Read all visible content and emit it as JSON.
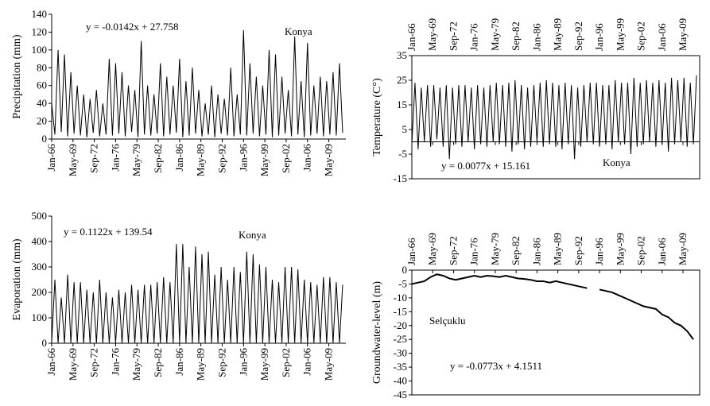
{
  "chart_data": [
    {
      "type": "line",
      "ylabel": "Precipitation (mm)",
      "ylim": [
        0,
        140
      ],
      "yticks": [
        0,
        20,
        40,
        60,
        80,
        100,
        120,
        140
      ],
      "xaxis_position": "bottom",
      "frame": false,
      "color": "#000000",
      "xlim": [
        "1966-01",
        "2012-01"
      ],
      "xticks": [
        {
          "value": "1966-01",
          "label": "Jan-66"
        },
        {
          "value": "1969-05",
          "label": "May-69"
        },
        {
          "value": "1972-09",
          "label": "Sep-72"
        },
        {
          "value": "1976-01",
          "label": "Jan-76"
        },
        {
          "value": "1979-05",
          "label": "May-79"
        },
        {
          "value": "1982-09",
          "label": "Sep-82"
        },
        {
          "value": "1986-01",
          "label": "Jan-86"
        },
        {
          "value": "1989-05",
          "label": "May-89"
        },
        {
          "value": "1992-09",
          "label": "Sep-92"
        },
        {
          "value": "1996-01",
          "label": "Jan-96"
        },
        {
          "value": "1999-05",
          "label": "May-99"
        },
        {
          "value": "2002-09",
          "label": "Sep-02"
        },
        {
          "value": "2006-01",
          "label": "Jan-06"
        },
        {
          "value": "2009-05",
          "label": "May-09"
        }
      ],
      "annotations": [
        {
          "text": "y = -0.0142x + 27.758"
        },
        {
          "text": "Konya"
        }
      ],
      "x": [
        "1966-01",
        "1966-07",
        "1967-01",
        "1967-07",
        "1968-01",
        "1968-07",
        "1969-01",
        "1969-07",
        "1970-01",
        "1970-07",
        "1971-01",
        "1971-07",
        "1972-01",
        "1972-07",
        "1973-01",
        "1973-07",
        "1974-01",
        "1974-07",
        "1975-01",
        "1975-07",
        "1976-01",
        "1976-07",
        "1977-01",
        "1977-07",
        "1978-01",
        "1978-07",
        "1979-01",
        "1979-07",
        "1980-01",
        "1980-07",
        "1981-01",
        "1981-07",
        "1982-01",
        "1982-07",
        "1983-01",
        "1983-07",
        "1984-01",
        "1984-07",
        "1985-01",
        "1985-07",
        "1986-01",
        "1986-07",
        "1987-01",
        "1987-07",
        "1988-01",
        "1988-07",
        "1989-01",
        "1989-07",
        "1990-01",
        "1990-07",
        "1991-01",
        "1991-07",
        "1992-01",
        "1992-07",
        "1993-01",
        "1993-07",
        "1994-01",
        "1994-07",
        "1995-01",
        "1995-07",
        "1996-01",
        "1996-07",
        "1997-01",
        "1997-07",
        "1998-01",
        "1998-07",
        "1999-01",
        "1999-07",
        "2000-01",
        "2000-07",
        "2001-01",
        "2001-07",
        "2002-01",
        "2002-07",
        "2003-01",
        "2003-07",
        "2004-01",
        "2004-07",
        "2005-01",
        "2005-07",
        "2006-01",
        "2006-07",
        "2007-01",
        "2007-07",
        "2008-01",
        "2008-07",
        "2009-01",
        "2009-07",
        "2010-01",
        "2010-07",
        "2011-01",
        "2011-07"
      ],
      "values": [
        40,
        5,
        100,
        8,
        95,
        3,
        75,
        6,
        60,
        4,
        50,
        2,
        45,
        7,
        55,
        3,
        40,
        5,
        90,
        4,
        85,
        6,
        75,
        3,
        60,
        8,
        55,
        2,
        110,
        5,
        60,
        4,
        50,
        6,
        85,
        3,
        70,
        5,
        60,
        7,
        90,
        2,
        65,
        4,
        80,
        6,
        55,
        3,
        40,
        5,
        60,
        2,
        50,
        6,
        45,
        4,
        80,
        3,
        50,
        5,
        122,
        4,
        85,
        6,
        70,
        3,
        60,
        5,
        100,
        2,
        95,
        4,
        70,
        6,
        55,
        3,
        115,
        5,
        65,
        2,
        108,
        4,
        60,
        6,
        70,
        3,
        65,
        5,
        75,
        4,
        85,
        7
      ]
    },
    {
      "type": "line",
      "ylabel": "Temperature (C°)",
      "ylim": [
        -15,
        35
      ],
      "yticks": [
        -15,
        -5,
        5,
        15,
        25,
        35
      ],
      "xaxis_position": "top",
      "frame": true,
      "color": "#000000",
      "xlim": [
        "1966-01",
        "2012-01"
      ],
      "xticks": [
        {
          "value": "1966-01",
          "label": "Jan-66"
        },
        {
          "value": "1969-05",
          "label": "May-69"
        },
        {
          "value": "1972-09",
          "label": "Sep-72"
        },
        {
          "value": "1976-01",
          "label": "Jan-76"
        },
        {
          "value": "1979-05",
          "label": "May-79"
        },
        {
          "value": "1982-09",
          "label": "Sep-82"
        },
        {
          "value": "1986-01",
          "label": "Jan-86"
        },
        {
          "value": "1989-05",
          "label": "May-89"
        },
        {
          "value": "1992-09",
          "label": "Sep-92"
        },
        {
          "value": "1996-01",
          "label": "Jan-96"
        },
        {
          "value": "1999-05",
          "label": "May-99"
        },
        {
          "value": "2002-09",
          "label": "Sep-02"
        },
        {
          "value": "2006-01",
          "label": "Jan-06"
        },
        {
          "value": "2009-05",
          "label": "May-09"
        }
      ],
      "annotations": [
        {
          "text": "y = 0.0077x + 15.161"
        },
        {
          "text": "Konya"
        }
      ],
      "x": [
        "1966-01",
        "1966-07",
        "1967-01",
        "1967-07",
        "1968-01",
        "1968-07",
        "1969-01",
        "1969-07",
        "1970-01",
        "1970-07",
        "1971-01",
        "1971-07",
        "1972-01",
        "1972-07",
        "1973-01",
        "1973-07",
        "1974-01",
        "1974-07",
        "1975-01",
        "1975-07",
        "1976-01",
        "1976-07",
        "1977-01",
        "1977-07",
        "1978-01",
        "1978-07",
        "1979-01",
        "1979-07",
        "1980-01",
        "1980-07",
        "1981-01",
        "1981-07",
        "1982-01",
        "1982-07",
        "1983-01",
        "1983-07",
        "1984-01",
        "1984-07",
        "1985-01",
        "1985-07",
        "1986-01",
        "1986-07",
        "1987-01",
        "1987-07",
        "1988-01",
        "1988-07",
        "1989-01",
        "1989-07",
        "1990-01",
        "1990-07",
        "1991-01",
        "1991-07",
        "1992-01",
        "1992-07",
        "1993-01",
        "1993-07",
        "1994-01",
        "1994-07",
        "1995-01",
        "1995-07",
        "1996-01",
        "1996-07",
        "1997-01",
        "1997-07",
        "1998-01",
        "1998-07",
        "1999-01",
        "1999-07",
        "2000-01",
        "2000-07",
        "2001-01",
        "2001-07",
        "2002-01",
        "2002-07",
        "2003-01",
        "2003-07",
        "2004-01",
        "2004-07",
        "2005-01",
        "2005-07",
        "2006-01",
        "2006-07",
        "2007-01",
        "2007-07",
        "2008-01",
        "2008-07",
        "2009-01",
        "2009-07",
        "2010-01",
        "2010-07",
        "2011-01",
        "2011-07"
      ],
      "values": [
        -1,
        24,
        -3,
        22,
        0,
        23,
        -2,
        23,
        1,
        22,
        -2,
        23,
        -7,
        22,
        -1,
        23,
        -2,
        23,
        0,
        22,
        -3,
        23,
        -1,
        22,
        -2,
        23,
        0,
        24,
        -1,
        23,
        -2,
        24,
        -4,
        25,
        -1,
        23,
        -3,
        22,
        -2,
        23,
        0,
        24,
        -2,
        25,
        -1,
        24,
        -2,
        23,
        -3,
        24,
        -1,
        23,
        -7,
        22,
        -2,
        23,
        0,
        24,
        -1,
        24,
        -2,
        23,
        -1,
        23,
        -3,
        25,
        0,
        24,
        -1,
        24,
        -5,
        26,
        -2,
        24,
        -1,
        25,
        0,
        24,
        -2,
        25,
        -1,
        24,
        -4,
        26,
        -1,
        25,
        0,
        26,
        -2,
        24,
        -1,
        27
      ]
    },
    {
      "type": "line",
      "ylabel": "Evaporation (mm)",
      "ylim": [
        0,
        500
      ],
      "yticks": [
        0,
        100,
        200,
        300,
        400,
        500
      ],
      "xaxis_position": "bottom",
      "frame": false,
      "color": "#000000",
      "xlim": [
        "1966-01",
        "2012-01"
      ],
      "xticks": [
        {
          "value": "1966-01",
          "label": "Jan-66"
        },
        {
          "value": "1969-05",
          "label": "May-69"
        },
        {
          "value": "1972-09",
          "label": "Sep-72"
        },
        {
          "value": "1976-01",
          "label": "Jan-76"
        },
        {
          "value": "1979-05",
          "label": "May-79"
        },
        {
          "value": "1982-09",
          "label": "Sep-82"
        },
        {
          "value": "1986-01",
          "label": "Jan-86"
        },
        {
          "value": "1989-05",
          "label": "May-89"
        },
        {
          "value": "1992-09",
          "label": "Sep-92"
        },
        {
          "value": "1996-01",
          "label": "Jan-96"
        },
        {
          "value": "1999-05",
          "label": "May-99"
        },
        {
          "value": "2002-09",
          "label": "Sep-02"
        },
        {
          "value": "2006-01",
          "label": "Jan-06"
        },
        {
          "value": "2009-05",
          "label": "May-09"
        }
      ],
      "annotations": [
        {
          "text": "y = 0.1122x + 139.54"
        },
        {
          "text": "Konya"
        }
      ],
      "x": [
        "1966-01",
        "1966-07",
        "1967-01",
        "1967-07",
        "1968-01",
        "1968-07",
        "1969-01",
        "1969-07",
        "1970-01",
        "1970-07",
        "1971-01",
        "1971-07",
        "1972-01",
        "1972-07",
        "1973-01",
        "1973-07",
        "1974-01",
        "1974-07",
        "1975-01",
        "1975-07",
        "1976-01",
        "1976-07",
        "1977-01",
        "1977-07",
        "1978-01",
        "1978-07",
        "1979-01",
        "1979-07",
        "1980-01",
        "1980-07",
        "1981-01",
        "1981-07",
        "1982-01",
        "1982-07",
        "1983-01",
        "1983-07",
        "1984-01",
        "1984-07",
        "1985-01",
        "1985-07",
        "1986-01",
        "1986-07",
        "1987-01",
        "1987-07",
        "1988-01",
        "1988-07",
        "1989-01",
        "1989-07",
        "1990-01",
        "1990-07",
        "1991-01",
        "1991-07",
        "1992-01",
        "1992-07",
        "1993-01",
        "1993-07",
        "1994-01",
        "1994-07",
        "1995-01",
        "1995-07",
        "1996-01",
        "1996-07",
        "1997-01",
        "1997-07",
        "1998-01",
        "1998-07",
        "1999-01",
        "1999-07",
        "2000-01",
        "2000-07",
        "2001-01",
        "2001-07",
        "2002-01",
        "2002-07",
        "2003-01",
        "2003-07",
        "2004-01",
        "2004-07",
        "2005-01",
        "2005-07",
        "2006-01",
        "2006-07",
        "2007-01",
        "2007-07",
        "2008-01",
        "2008-07",
        "2009-01",
        "2009-07",
        "2010-01",
        "2010-07",
        "2011-01",
        "2011-07"
      ],
      "values": [
        0,
        250,
        0,
        180,
        0,
        270,
        0,
        240,
        0,
        240,
        0,
        210,
        0,
        200,
        0,
        250,
        0,
        200,
        0,
        180,
        0,
        210,
        0,
        200,
        0,
        230,
        0,
        210,
        0,
        230,
        0,
        230,
        0,
        240,
        0,
        260,
        0,
        240,
        0,
        390,
        0,
        390,
        0,
        300,
        0,
        380,
        0,
        350,
        0,
        360,
        0,
        270,
        0,
        300,
        0,
        250,
        0,
        300,
        0,
        280,
        0,
        360,
        0,
        350,
        0,
        310,
        0,
        300,
        0,
        250,
        0,
        240,
        0,
        300,
        0,
        300,
        0,
        290,
        0,
        250,
        0,
        240,
        0,
        230,
        0,
        260,
        0,
        260,
        0,
        240,
        0,
        230
      ]
    },
    {
      "type": "line",
      "ylabel": "Groundwater-level  (m)",
      "ylim": [
        -45,
        0
      ],
      "yticks": [
        0,
        -5,
        -10,
        -15,
        -20,
        -25,
        -30,
        -35,
        -40,
        -45
      ],
      "xaxis_position": "top",
      "frame": true,
      "color": "#000000",
      "xlim": [
        "1966-01",
        "2012-01"
      ],
      "xticks": [
        {
          "value": "1966-01",
          "label": "Jan-66"
        },
        {
          "value": "1969-05",
          "label": "May-69"
        },
        {
          "value": "1972-09",
          "label": "Sep-72"
        },
        {
          "value": "1976-01",
          "label": "Jan-76"
        },
        {
          "value": "1979-05",
          "label": "May-79"
        },
        {
          "value": "1982-09",
          "label": "Sep-82"
        },
        {
          "value": "1986-01",
          "label": "Jan-86"
        },
        {
          "value": "1989-05",
          "label": "May-89"
        },
        {
          "value": "1992-09",
          "label": "Sep-92"
        },
        {
          "value": "1996-01",
          "label": "Jan-96"
        },
        {
          "value": "1999-05",
          "label": "May-99"
        },
        {
          "value": "2002-09",
          "label": "Sep-02"
        },
        {
          "value": "2006-01",
          "label": "Jan-06"
        },
        {
          "value": "2009-05",
          "label": "May-09"
        }
      ],
      "annotations": [
        {
          "text": "y = -0.0773x + 4.1511"
        },
        {
          "text": "Selçuklu"
        }
      ],
      "x": [
        "1966-01",
        "1967-01",
        "1968-01",
        "1969-01",
        "1970-01",
        "1971-01",
        "1972-01",
        "1973-01",
        "1974-01",
        "1975-01",
        "1976-01",
        "1977-01",
        "1978-01",
        "1979-01",
        "1980-01",
        "1981-01",
        "1982-01",
        "1983-01",
        "1984-01",
        "1985-01",
        "1986-01",
        "1987-01",
        "1988-01",
        "1989-01",
        "1990-01",
        "1991-01",
        "1992-01",
        "1993-01",
        "1994-01",
        "1995-01",
        "1996-01",
        "1997-01",
        "1998-01",
        "1999-01",
        "2000-01",
        "2001-01",
        "2002-01",
        "2003-01",
        "2004-01",
        "2005-01",
        "2006-01",
        "2007-01",
        "2008-01",
        "2009-01",
        "2010-01",
        "2011-01"
      ],
      "values": [
        -5,
        -4.5,
        -4,
        -2.5,
        -1.5,
        -2,
        -3,
        -3.5,
        -3,
        -2.5,
        -2,
        -2.5,
        -2,
        -2.2,
        -2.5,
        -2,
        -2.5,
        -3,
        -3.2,
        -3.5,
        -4,
        -4,
        -4.5,
        -4,
        -4.5,
        -5,
        -5.5,
        -6,
        -6.5,
        null,
        -7,
        -7.5,
        -8,
        -9,
        -10,
        -11,
        -12,
        -13,
        -13.5,
        -14,
        -16,
        -17,
        -19,
        -20,
        -22,
        -25
      ]
    }
  ]
}
